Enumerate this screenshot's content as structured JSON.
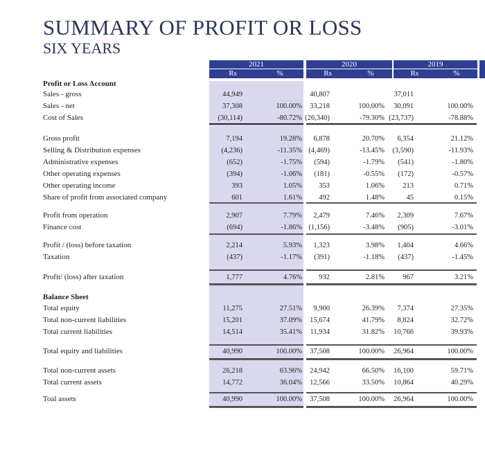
{
  "title": "SUMMARY OF PROFIT OR LOSS",
  "subtitle": "SIX YEARS",
  "years": [
    "2021",
    "2020",
    "2019"
  ],
  "col_labels": {
    "rs": "Rs",
    "pct": "%"
  },
  "colors": {
    "header_blue": "#2e3f93",
    "highlight_band": "#d9d8ef"
  },
  "rows": [
    {
      "label": "Profit or Loss Account",
      "heading": true,
      "values": []
    },
    {
      "label": "Sales - gross",
      "values": [
        "44,949",
        "",
        "40,807",
        "",
        "37,011",
        ""
      ]
    },
    {
      "label": "Sales - net",
      "values": [
        "37,308",
        "100.00%",
        "33,218",
        "100.00%",
        "30,091",
        "100.00%"
      ]
    },
    {
      "label": "Cost of Sales",
      "values": [
        "(30,114)",
        "-80.72%",
        "(26,340)",
        "-79.30%",
        "(23,737)",
        "-78.88%"
      ]
    },
    {
      "label": "Gross profit",
      "values": [
        "7,194",
        "19.28%",
        "6,878",
        "20.70%",
        "6,354",
        "21.12%"
      ]
    },
    {
      "label": "Selling & Distribution expenses",
      "values": [
        "(4,236)",
        "-11.35%",
        "(4,469)",
        "-13.45%",
        "(3,590)",
        "-11.93%"
      ]
    },
    {
      "label": "Administrative expenses",
      "values": [
        "(652)",
        "-1.75%",
        "(594)",
        "-1.79%",
        "(541)",
        "-1.80%"
      ]
    },
    {
      "label": "Other operating expenses",
      "values": [
        "(394)",
        "-1.06%",
        "(181)",
        "-0.55%",
        "(172)",
        "-0.57%"
      ]
    },
    {
      "label": "Other operating income",
      "values": [
        "393",
        "1.05%",
        "353",
        "1.06%",
        "213",
        "0.71%"
      ]
    },
    {
      "label": "Share of profit from associated company",
      "values": [
        "601",
        "1.61%",
        "492",
        "1.48%",
        "45",
        "0.15%"
      ]
    },
    {
      "label": "Profit from operation",
      "values": [
        "2,907",
        "7.79%",
        "2,479",
        "7.46%",
        "2,309",
        "7.67%"
      ]
    },
    {
      "label": "Finance cost",
      "values": [
        "(694)",
        "-1.86%",
        "(1,156)",
        "-3.48%",
        "(905)",
        "-3.01%"
      ]
    },
    {
      "label": "Profit / (loss) before taxation",
      "values": [
        "2,214",
        "5.93%",
        "1,323",
        "3.98%",
        "1,404",
        "4.66%"
      ]
    },
    {
      "label": "Taxation",
      "values": [
        "(437)",
        "-1.17%",
        "(391)",
        "-1.18%",
        "(437)",
        "-1.45%"
      ]
    },
    {
      "label": "Profit/ (loss) after taxation",
      "values": [
        "1,777",
        "4.76%",
        "932",
        "2.81%",
        "967",
        "3.21%"
      ]
    },
    {
      "label": "Balance Sheet",
      "heading": true,
      "values": []
    },
    {
      "label": "Total equity",
      "values": [
        "11,275",
        "27.51%",
        "9,900",
        "26.39%",
        "7,374",
        "27.35%"
      ]
    },
    {
      "label": "Total non-current liabilities",
      "values": [
        "15,201",
        "37.09%",
        "15,674",
        "41.79%",
        "8,824",
        "32.72%"
      ]
    },
    {
      "label": "Total current liabilities",
      "values": [
        "14,514",
        "35.41%",
        "11,934",
        "31.82%",
        "10,766",
        "39.93%"
      ]
    },
    {
      "label": "Total equity and liabilities",
      "values": [
        "40,990",
        "100.00%",
        "37,508",
        "100.00%",
        "26,964",
        "100.00%"
      ]
    },
    {
      "label": "Total non-current assets",
      "values": [
        "26,218",
        "63.96%",
        "24,942",
        "66.50%",
        "16,100",
        "59.71%"
      ]
    },
    {
      "label": "Total current assets",
      "values": [
        "14,772",
        "36.04%",
        "12,566",
        "33.50%",
        "10,864",
        "40.29%"
      ]
    },
    {
      "label": "Toal assets",
      "values": [
        "40,990",
        "100.00%",
        "37,508",
        "100.00%",
        "26,964",
        "100.00%"
      ]
    }
  ]
}
